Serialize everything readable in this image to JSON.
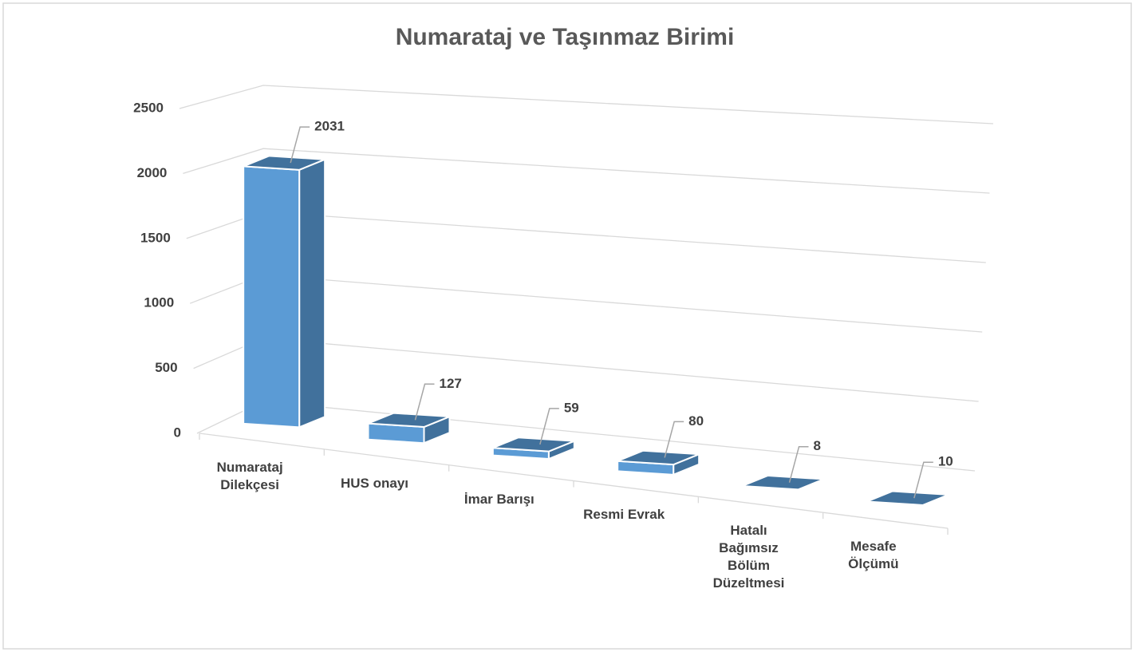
{
  "chart_data": {
    "type": "bar3d",
    "title": "Numarataj ve Taşınmaz Birimi",
    "categories": [
      "Numarataj Dilekçesi",
      "HUS onayı",
      "İmar Barışı",
      "Resmi Evrak",
      "Hatalı Bağımsız Bölüm Düzeltmesi",
      "Mesafe Ölçümü"
    ],
    "values": [
      2031,
      127,
      59,
      80,
      8,
      10
    ],
    "color": "#5b9bd5",
    "side_color": "#41719c",
    "ylim": [
      0,
      2500
    ],
    "yticks": [
      0,
      500,
      1000,
      1500,
      2000,
      2500
    ],
    "grid": true
  }
}
